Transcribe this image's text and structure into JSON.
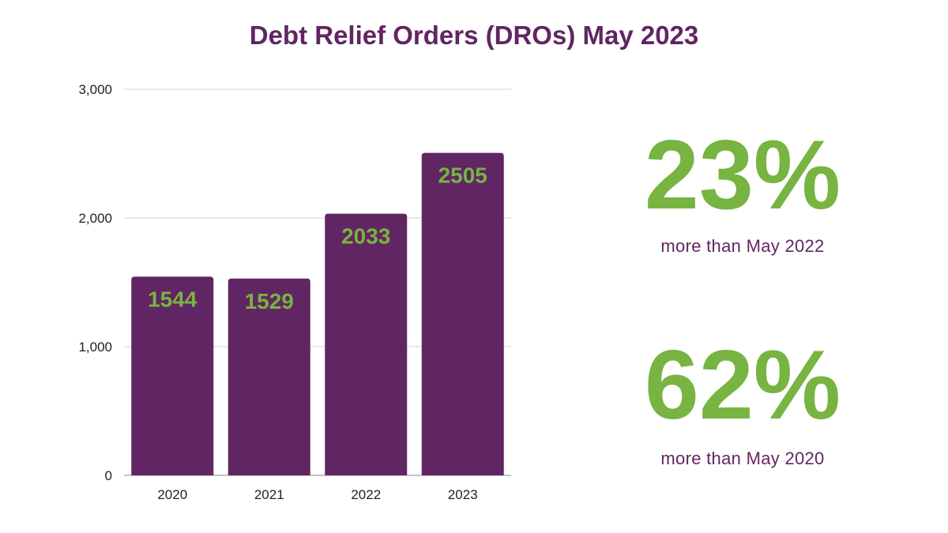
{
  "title": "Debt Relief Orders (DROs) May 2023",
  "colors": {
    "bar": "#612563",
    "label": "#77b441",
    "accent": "#612563",
    "grid": "#d3d3d3"
  },
  "chart_data": {
    "type": "bar",
    "categories": [
      "2020",
      "2021",
      "2022",
      "2023"
    ],
    "values": [
      1544,
      1529,
      2033,
      2505
    ],
    "data_labels": [
      "1544",
      "1529",
      "2033",
      "2505"
    ],
    "yticks": [
      0,
      1000,
      2000,
      3000
    ],
    "ytick_labels": [
      "0",
      "1,000",
      "2,000",
      "3,000"
    ],
    "ylim": [
      0,
      3000
    ],
    "grid": true,
    "xlabel": "",
    "ylabel": ""
  },
  "stats": [
    {
      "value": "23%",
      "caption": "more than May 2022"
    },
    {
      "value": "62%",
      "caption": "more than May 2020"
    }
  ]
}
